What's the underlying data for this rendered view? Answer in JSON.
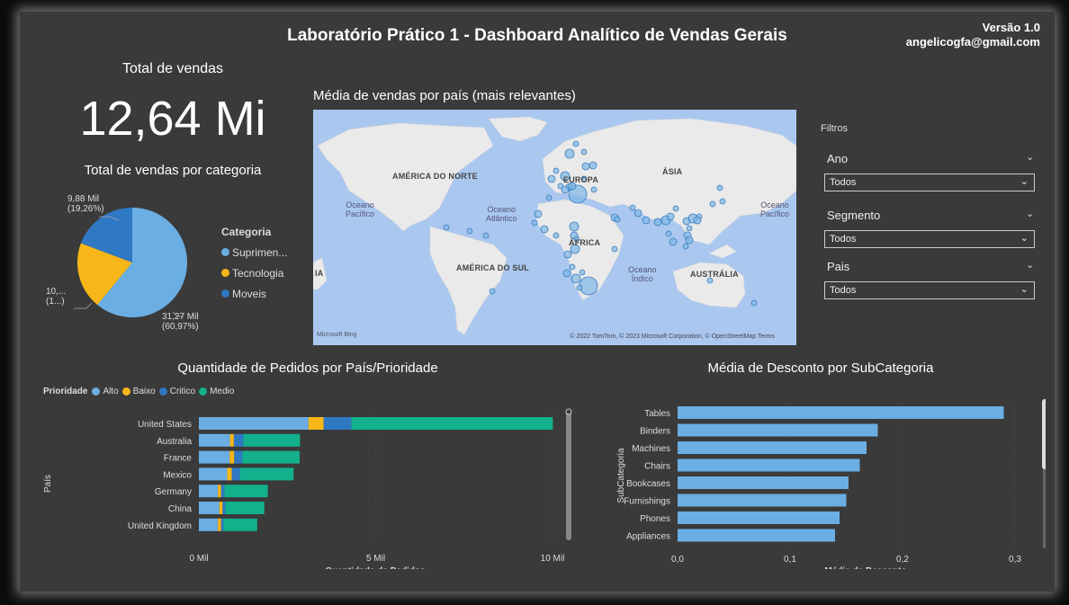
{
  "header": {
    "title": "Laboratório Prático 1 - Dashboard Analítico de Vendas Gerais",
    "version": "Versão 1.0",
    "email": "angelicogfa@gmail.com"
  },
  "kpi": {
    "label": "Total de vendas",
    "value": "12,64 Mi"
  },
  "category_pie": {
    "title": "Total de vendas por categoria",
    "legend_title": "Categoria",
    "items": [
      {
        "name": "Suprimen...",
        "color": "#6aaee3",
        "percent": 60.97,
        "label1": "31,27 Mil",
        "label2": "(60,97%)"
      },
      {
        "name": "Tecnologia",
        "color": "#f7b718",
        "percent": 19.77,
        "label1": "10,...",
        "label2": "(1...)"
      },
      {
        "name": "Moveis",
        "color": "#2f78c4",
        "percent": 19.26,
        "label1": "9,88 Mil",
        "label2": "(19,26%)"
      }
    ]
  },
  "map": {
    "title": "Média de vendas por país (mais relevantes)",
    "continents": [
      "AMÉRICA DO NORTE",
      "EUROPA",
      "ÁSIA",
      "ÁFRICA",
      "AMÉRICA DO SUL",
      "AUSTRÁLIA",
      "IA"
    ],
    "oceans": {
      "pacific_w": [
        "Oceano",
        "Pacífico"
      ],
      "atlantic": [
        "Oceano",
        "Atlântico"
      ],
      "pacific_e": [
        "Oceano",
        "Pacífico"
      ],
      "indian": [
        "Oceano",
        "Índico"
      ]
    },
    "logo": "Microsoft Bing",
    "copyright": "© 2022 TomTom, © 2023 Microsoft Corporation, © OpenStreetMap  Terms"
  },
  "filters": {
    "title": "Filtros",
    "items": [
      {
        "label": "Ano",
        "value": "Todos"
      },
      {
        "label": "Segmento",
        "value": "Todos"
      },
      {
        "label": "Pais",
        "value": "Todos"
      }
    ]
  },
  "colors": {
    "alto": "#6aaee3",
    "baixo": "#f7b718",
    "critico": "#2f78c4",
    "medio": "#12b08c",
    "bar": "#6aaee3"
  },
  "chart_data": [
    {
      "type": "bar",
      "orientation": "horizontal",
      "stacked": true,
      "title": "Quantidade de Pedidos por País/Prioridade",
      "legend_title": "Prioridade",
      "xlabel": "Quantidade de Pedidos",
      "ylabel": "País",
      "xticks": [
        "0 Mil",
        "5 Mil",
        "10 Mil"
      ],
      "xlim": [
        0,
        10000
      ],
      "categories": [
        "United States",
        "Australia",
        "France",
        "Mexico",
        "Germany",
        "China",
        "United Kingdom"
      ],
      "series": [
        {
          "name": "Alto",
          "values": [
            3100,
            880,
            870,
            800,
            540,
            580,
            540
          ]
        },
        {
          "name": "Baixo",
          "values": [
            430,
            110,
            130,
            130,
            90,
            90,
            90
          ]
        },
        {
          "name": "Critico",
          "values": [
            780,
            270,
            230,
            230,
            90,
            80,
            70
          ]
        },
        {
          "name": "Medio",
          "values": [
            5700,
            1600,
            1620,
            1520,
            1230,
            1100,
            950
          ]
        }
      ]
    },
    {
      "type": "bar",
      "orientation": "horizontal",
      "title": "Média de Desconto por SubCategoria",
      "xlabel": "Média de Desconto",
      "ylabel": "SubCategoria",
      "xticks": [
        "0,0",
        "0,1",
        "0,2",
        "0,3"
      ],
      "xlim": [
        0,
        0.3
      ],
      "categories": [
        "Tables",
        "Binders",
        "Machines",
        "Chairs",
        "Bookcases",
        "Furnishings",
        "Phones",
        "Appliances"
      ],
      "values": [
        0.29,
        0.178,
        0.168,
        0.162,
        0.152,
        0.15,
        0.144,
        0.14
      ]
    }
  ]
}
